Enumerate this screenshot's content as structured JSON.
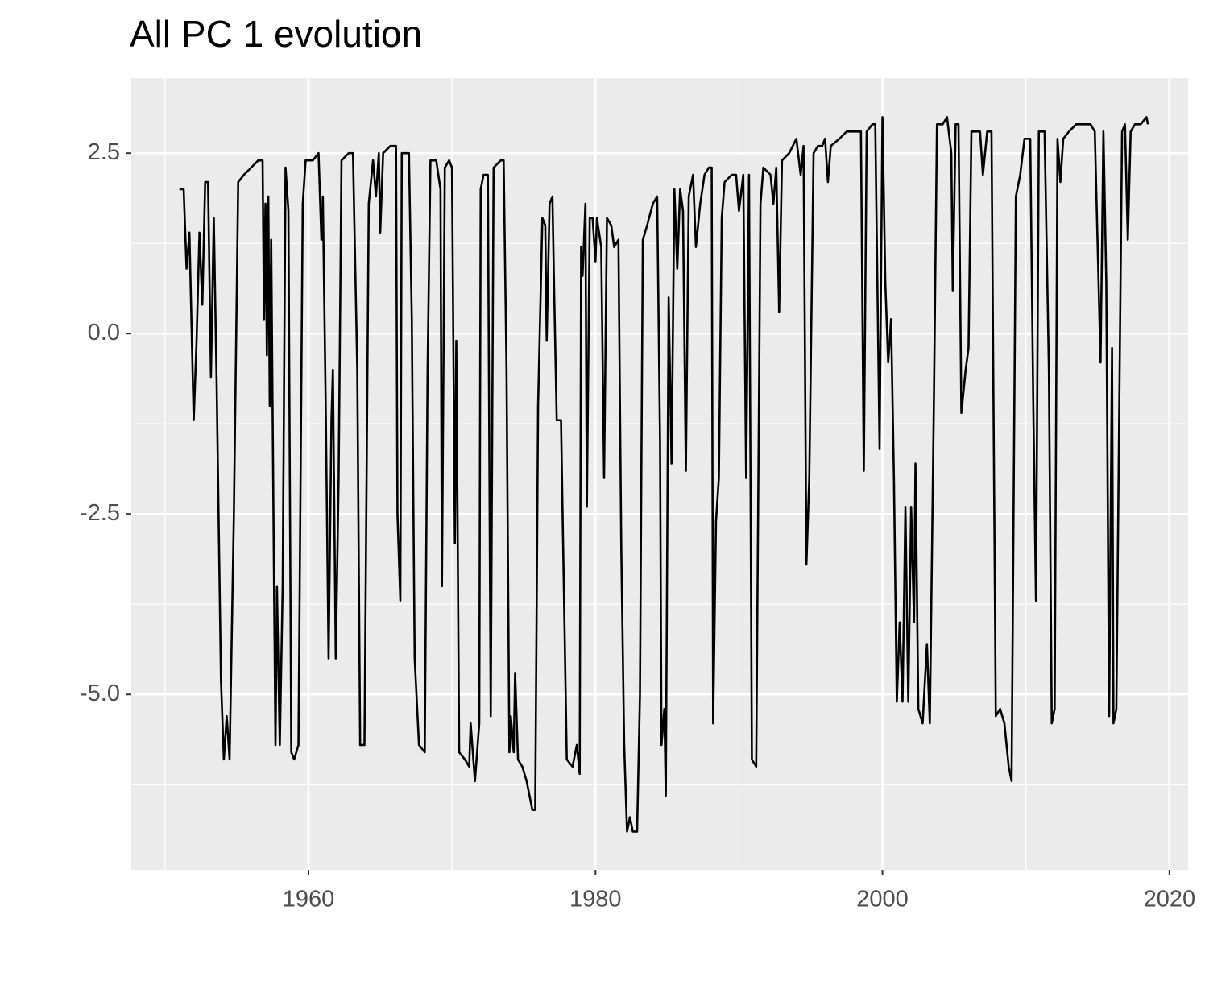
{
  "chart_data": {
    "type": "line",
    "title": "All PC 1 evolution",
    "x": [
      1951.0,
      1951.3,
      1951.5,
      1951.7,
      1952.0,
      1952.2,
      1952.4,
      1952.6,
      1952.8,
      1953.0,
      1953.2,
      1953.4,
      1953.6,
      1953.9,
      1954.1,
      1954.3,
      1954.5,
      1954.8,
      1955.1,
      1955.5,
      1956.0,
      1956.5,
      1956.8,
      1956.9,
      1957.0,
      1957.1,
      1957.2,
      1957.3,
      1957.4,
      1957.6,
      1957.7,
      1957.8,
      1958.0,
      1958.2,
      1958.4,
      1958.6,
      1958.8,
      1959.0,
      1959.3,
      1959.6,
      1959.8,
      1960.3,
      1960.7,
      1960.9,
      1961.0,
      1961.2,
      1961.4,
      1961.6,
      1961.7,
      1961.9,
      1962.1,
      1962.3,
      1962.8,
      1963.1,
      1963.4,
      1963.6,
      1963.9,
      1964.2,
      1964.5,
      1964.7,
      1964.9,
      1965.0,
      1965.2,
      1965.7,
      1966.1,
      1966.2,
      1966.4,
      1966.5,
      1967.0,
      1967.2,
      1967.4,
      1967.7,
      1968.1,
      1968.3,
      1968.5,
      1968.9,
      1969.2,
      1969.3,
      1969.5,
      1969.8,
      1970.0,
      1970.2,
      1970.3,
      1970.5,
      1970.9,
      1971.2,
      1971.3,
      1971.6,
      1971.9,
      1972.0,
      1972.2,
      1972.5,
      1972.7,
      1972.9,
      1973.4,
      1973.6,
      1973.8,
      1974.0,
      1974.1,
      1974.3,
      1974.4,
      1974.6,
      1974.9,
      1975.2,
      1975.6,
      1975.8,
      1976.0,
      1976.3,
      1976.5,
      1976.6,
      1976.8,
      1977.0,
      1977.1,
      1977.3,
      1977.6,
      1977.7,
      1978.0,
      1978.4,
      1978.7,
      1978.9,
      1979.0,
      1979.1,
      1979.3,
      1979.4,
      1979.6,
      1979.8,
      1980.0,
      1980.1,
      1980.4,
      1980.6,
      1980.8,
      1981.1,
      1981.3,
      1981.6,
      1981.8,
      1982.0,
      1982.2,
      1982.4,
      1982.6,
      1982.9,
      1983.1,
      1983.3,
      1983.6,
      1984.0,
      1984.3,
      1984.5,
      1984.6,
      1984.8,
      1984.9,
      1985.1,
      1985.3,
      1985.5,
      1985.7,
      1985.9,
      1986.1,
      1986.3,
      1986.5,
      1986.8,
      1987.0,
      1987.3,
      1987.6,
      1987.9,
      1988.1,
      1988.2,
      1988.4,
      1988.6,
      1988.8,
      1989.0,
      1989.5,
      1989.8,
      1990.0,
      1990.3,
      1990.5,
      1990.7,
      1990.9,
      1991.2,
      1991.5,
      1991.7,
      1992.2,
      1992.4,
      1992.6,
      1992.8,
      1993.0,
      1993.5,
      1994.0,
      1994.3,
      1994.5,
      1994.7,
      1994.9,
      1995.2,
      1995.5,
      1995.8,
      1996.0,
      1996.2,
      1996.4,
      1997.0,
      1997.5,
      1998.0,
      1998.5,
      1998.7,
      1998.9,
      1999.3,
      1999.5,
      1999.8,
      2000.0,
      2000.2,
      2000.4,
      2000.6,
      2000.8,
      2001.0,
      2001.2,
      2001.4,
      2001.6,
      2001.8,
      2002.0,
      2002.2,
      2002.3,
      2002.5,
      2002.8,
      2003.1,
      2003.3,
      2003.6,
      2003.8,
      2004.2,
      2004.5,
      2004.8,
      2004.9,
      2005.1,
      2005.3,
      2005.5,
      2005.8,
      2006.0,
      2006.2,
      2006.8,
      2007.0,
      2007.3,
      2007.6,
      2007.9,
      2008.2,
      2008.5,
      2008.8,
      2009.0,
      2009.3,
      2009.6,
      2009.9,
      2010.3,
      2010.5,
      2010.7,
      2010.9,
      2011.3,
      2011.6,
      2011.8,
      2012.0,
      2012.2,
      2012.4,
      2012.6,
      2013.0,
      2013.5,
      2014.0,
      2014.5,
      2014.8,
      2015.0,
      2015.2,
      2015.4,
      2015.6,
      2015.8,
      2016.0,
      2016.1,
      2016.3,
      2016.5,
      2016.7,
      2016.9,
      2017.1,
      2017.3,
      2017.6,
      2018.0,
      2018.4,
      2018.5
    ],
    "series": [
      {
        "color": "#000000",
        "values": [
          2.0,
          2.0,
          0.9,
          1.4,
          -1.2,
          -0.1,
          1.4,
          0.4,
          2.1,
          2.1,
          -0.6,
          1.6,
          -0.7,
          -4.8,
          -5.9,
          -5.3,
          -5.9,
          -2.5,
          2.1,
          2.2,
          2.3,
          2.4,
          2.4,
          0.2,
          1.8,
          -0.3,
          1.9,
          -1.0,
          1.3,
          -3.5,
          -5.7,
          -3.5,
          -5.7,
          -3.5,
          2.3,
          1.7,
          -5.8,
          -5.9,
          -5.7,
          1.8,
          2.4,
          2.4,
          2.5,
          1.3,
          1.9,
          -1.0,
          -4.5,
          -1.2,
          -0.5,
          -4.5,
          -2.0,
          2.4,
          2.5,
          2.5,
          -0.5,
          -5.7,
          -5.7,
          1.8,
          2.4,
          1.9,
          2.5,
          1.4,
          2.5,
          2.6,
          2.6,
          -2.5,
          -3.7,
          2.5,
          2.5,
          0.2,
          -4.5,
          -5.7,
          -5.8,
          -0.5,
          2.4,
          2.4,
          2.0,
          -3.5,
          2.3,
          2.4,
          2.3,
          -2.9,
          -0.1,
          -5.8,
          -5.9,
          -6.0,
          -5.4,
          -6.2,
          -5.4,
          2.0,
          2.2,
          2.2,
          -5.3,
          2.3,
          2.4,
          2.4,
          -0.5,
          -5.8,
          -5.3,
          -5.8,
          -4.7,
          -5.9,
          -6.0,
          -6.2,
          -6.6,
          -6.6,
          -1.0,
          1.6,
          1.5,
          -0.1,
          1.8,
          1.9,
          0.8,
          -1.2,
          -1.2,
          -2.4,
          -5.9,
          -6.0,
          -5.7,
          -6.1,
          1.2,
          0.8,
          1.8,
          -2.4,
          1.6,
          1.6,
          1.0,
          1.6,
          1.2,
          -2.0,
          1.6,
          1.5,
          1.2,
          1.3,
          -3.0,
          -5.7,
          -6.9,
          -6.7,
          -6.9,
          -6.9,
          -5.0,
          1.3,
          1.5,
          1.8,
          1.9,
          -1.5,
          -5.7,
          -5.2,
          -6.4,
          0.5,
          -1.8,
          2.0,
          0.9,
          2.0,
          1.7,
          -1.9,
          1.9,
          2.2,
          1.2,
          1.8,
          2.2,
          2.3,
          2.3,
          -5.4,
          -2.6,
          -2.0,
          1.6,
          2.1,
          2.2,
          2.2,
          1.7,
          2.2,
          -2.0,
          2.2,
          -5.9,
          -6.0,
          1.8,
          2.3,
          2.2,
          1.8,
          2.3,
          0.3,
          2.4,
          2.5,
          2.7,
          2.2,
          2.6,
          -3.2,
          -2.0,
          2.5,
          2.6,
          2.6,
          2.7,
          2.1,
          2.6,
          2.7,
          2.8,
          2.8,
          2.8,
          -1.9,
          2.8,
          2.9,
          2.9,
          -1.6,
          3.0,
          0.7,
          -0.4,
          0.2,
          -2.0,
          -5.1,
          -4.0,
          -5.1,
          -2.4,
          -5.1,
          -2.4,
          -4.0,
          -1.8,
          -5.2,
          -5.4,
          -4.3,
          -5.4,
          -0.7,
          2.9,
          2.9,
          3.0,
          2.5,
          0.6,
          2.9,
          2.9,
          -1.1,
          -0.5,
          -0.2,
          2.8,
          2.8,
          2.2,
          2.8,
          2.8,
          -5.3,
          -5.2,
          -5.4,
          -6.0,
          -6.2,
          1.9,
          2.2,
          2.7,
          2.7,
          -0.8,
          -3.7,
          2.8,
          2.8,
          -0.5,
          -5.4,
          -5.2,
          2.7,
          2.1,
          2.7,
          2.8,
          2.9,
          2.9,
          2.9,
          2.8,
          1.2,
          -0.4,
          2.8,
          0.7,
          -5.3,
          -0.2,
          -5.4,
          -5.2,
          -1.1,
          2.8,
          2.9,
          1.3,
          2.8,
          2.9,
          2.9,
          3.0,
          2.9
        ]
      }
    ],
    "xlim": [
      1947.65,
      2021.3
    ],
    "xticks": [
      1960,
      1980,
      2000,
      2020
    ],
    "x_minor_grid": [
      1950,
      1970,
      1990,
      2010
    ],
    "ylim": [
      -7.43,
      3.54
    ],
    "yticks": [
      2.5,
      {
        "value": 0,
        "label": "0.0"
      },
      -2.5,
      {
        "value": -5,
        "label": "-5.0"
      }
    ],
    "y_minor_grid": [
      1.25,
      -1.25,
      -3.75,
      -6.25
    ],
    "grid": true
  }
}
